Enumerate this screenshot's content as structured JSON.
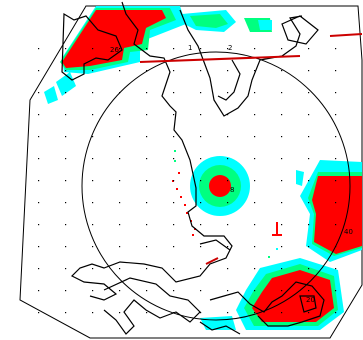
{
  "map": {
    "labels": {
      "label_26": "26",
      "label_1": "1",
      "label_2": "2",
      "label_8": "8",
      "label_40": "40",
      "label_20": "20"
    },
    "colors": {
      "background": "#ffffff",
      "coastline": "#000000",
      "grid_dot": "#000000",
      "high": "#ff0000",
      "mid": "#00ff80",
      "low": "#00ffff",
      "accent_line": "#cc0000",
      "ring": "#000000"
    }
  }
}
